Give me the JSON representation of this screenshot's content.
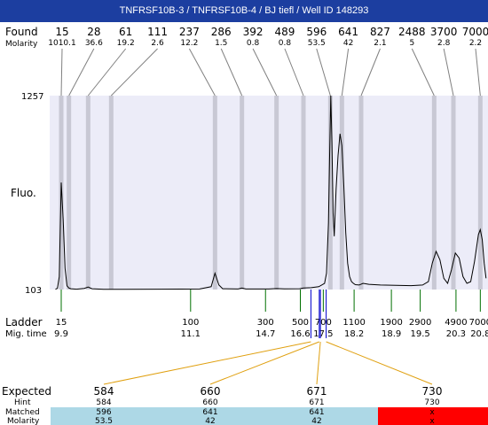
{
  "title": "TNFRSF10B-3 / TNFRSF10B-4 / BJ tiefl / Well ID 148293",
  "labels": {
    "found": "Found",
    "molarity": "Molarity",
    "fluo": "Fluo.",
    "ladder": "Ladder",
    "mig_time": "Mig. time",
    "expected": "Expected",
    "hint": "Hint",
    "matched": "Matched",
    "molarity2": "Molarity"
  },
  "colors": {
    "title_bg": "#1c3ea0",
    "plot_bg": "#ececf8",
    "band": "#c8c8d4",
    "leader_found": "#808080",
    "leader_expected": "#e0a010",
    "ladder_tick": "#007000",
    "matched_bg": "#add8e6",
    "unmatched_bg": "#ff0000",
    "blue_marker": "#0000cc"
  },
  "chart_data": {
    "type": "line",
    "title": "TNFRSF10B-3 / TNFRSF10B-4 / BJ tiefl / Well ID 148293",
    "ylabel": "Fluo.",
    "ylim": [
      103,
      1257
    ],
    "y_ticks": [
      "1257",
      "103"
    ],
    "found_peaks": [
      {
        "size": "15",
        "molarity": "1010.1",
        "x": 9.9
      },
      {
        "size": "28",
        "molarity": "36.6",
        "x": 10.1
      },
      {
        "size": "61",
        "molarity": "19.2",
        "x": 10.6
      },
      {
        "size": "111",
        "molarity": "2.6",
        "x": 11.2
      },
      {
        "size": "237",
        "molarity": "12.2",
        "x": 13.9
      },
      {
        "size": "286",
        "molarity": "1.5",
        "x": 14.6
      },
      {
        "size": "392",
        "molarity": "0.8",
        "x": 15.5
      },
      {
        "size": "489",
        "molarity": "0.8",
        "x": 16.2
      },
      {
        "size": "596",
        "molarity": "53.5",
        "x": 16.9
      },
      {
        "size": "641",
        "molarity": "42",
        "x": 17.2
      },
      {
        "size": "827",
        "molarity": "2.1",
        "x": 17.7
      },
      {
        "size": "2488",
        "molarity": "5",
        "x": 19.6
      },
      {
        "size": "3700",
        "molarity": "2.8",
        "x": 20.1
      },
      {
        "size": "7000",
        "molarity": "2.2",
        "x": 20.8
      }
    ],
    "ladder": [
      {
        "size": "15",
        "time": "9.9"
      },
      {
        "size": "100",
        "time": "11.1"
      },
      {
        "size": "300",
        "time": "14.7"
      },
      {
        "size": "500",
        "time": "16.6"
      },
      {
        "size": "700",
        "time": "17.5"
      },
      {
        "size": "1100",
        "time": "18.2"
      },
      {
        "size": "1900",
        "time": "18.9"
      },
      {
        "size": "2900",
        "time": "19.5"
      },
      {
        "size": "4900",
        "time": "20.3"
      },
      {
        "size": "7000",
        "time": "20.8"
      }
    ],
    "trace": [
      [
        9.75,
        105
      ],
      [
        9.8,
        110
      ],
      [
        9.85,
        180
      ],
      [
        9.9,
        740
      ],
      [
        9.95,
        520
      ],
      [
        10.0,
        230
      ],
      [
        10.05,
        125
      ],
      [
        10.1,
        112
      ],
      [
        10.15,
        108
      ],
      [
        10.3,
        105
      ],
      [
        10.5,
        110
      ],
      [
        10.6,
        118
      ],
      [
        10.7,
        108
      ],
      [
        11.0,
        104
      ],
      [
        11.5,
        104
      ],
      [
        12.5,
        105
      ],
      [
        13.5,
        106
      ],
      [
        13.8,
        120
      ],
      [
        13.9,
        200
      ],
      [
        14.0,
        130
      ],
      [
        14.1,
        108
      ],
      [
        14.5,
        106
      ],
      [
        14.6,
        112
      ],
      [
        14.7,
        106
      ],
      [
        15.3,
        106
      ],
      [
        15.5,
        109
      ],
      [
        15.7,
        107
      ],
      [
        16.1,
        108
      ],
      [
        16.2,
        112
      ],
      [
        16.4,
        114
      ],
      [
        16.6,
        120
      ],
      [
        16.75,
        140
      ],
      [
        16.8,
        200
      ],
      [
        16.85,
        500
      ],
      [
        16.88,
        900
      ],
      [
        16.91,
        1257
      ],
      [
        16.94,
        980
      ],
      [
        16.97,
        560
      ],
      [
        17.0,
        420
      ],
      [
        17.05,
        700
      ],
      [
        17.1,
        900
      ],
      [
        17.15,
        1030
      ],
      [
        17.2,
        960
      ],
      [
        17.25,
        720
      ],
      [
        17.3,
        440
      ],
      [
        17.35,
        260
      ],
      [
        17.4,
        180
      ],
      [
        17.45,
        150
      ],
      [
        17.5,
        140
      ],
      [
        17.55,
        132
      ],
      [
        17.65,
        130
      ],
      [
        17.75,
        140
      ],
      [
        17.9,
        134
      ],
      [
        18.2,
        130
      ],
      [
        18.6,
        128
      ],
      [
        19.0,
        126
      ],
      [
        19.3,
        130
      ],
      [
        19.45,
        150
      ],
      [
        19.55,
        260
      ],
      [
        19.65,
        330
      ],
      [
        19.75,
        280
      ],
      [
        19.85,
        170
      ],
      [
        19.95,
        140
      ],
      [
        20.05,
        220
      ],
      [
        20.15,
        320
      ],
      [
        20.25,
        290
      ],
      [
        20.35,
        180
      ],
      [
        20.45,
        140
      ],
      [
        20.55,
        150
      ],
      [
        20.65,
        270
      ],
      [
        20.75,
        430
      ],
      [
        20.8,
        460
      ],
      [
        20.85,
        400
      ],
      [
        20.9,
        260
      ],
      [
        20.95,
        170
      ]
    ],
    "expected": [
      {
        "size": "584",
        "hint": "584",
        "matched": "596",
        "molarity": "53.5",
        "found_index": 8,
        "status": "matched"
      },
      {
        "size": "660",
        "hint": "660",
        "matched": "641",
        "molarity": "42",
        "found_index": 9,
        "status": "matched"
      },
      {
        "size": "671",
        "hint": "671",
        "matched": "641",
        "molarity": "42",
        "found_index": 9,
        "status": "matched"
      },
      {
        "size": "730",
        "hint": "730",
        "matched": "x",
        "molarity": "x",
        "found_index": null,
        "status": "unmatched"
      }
    ]
  }
}
